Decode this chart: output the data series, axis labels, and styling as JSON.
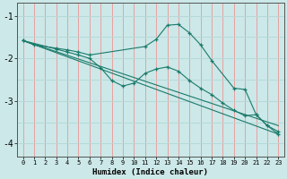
{
  "xlabel": "Humidex (Indice chaleur)",
  "xlim": [
    -0.5,
    23.5
  ],
  "ylim": [
    -4.3,
    -0.7
  ],
  "yticks": [
    -4,
    -3,
    -2,
    -1
  ],
  "xticks": [
    0,
    1,
    2,
    3,
    4,
    5,
    6,
    7,
    8,
    9,
    10,
    11,
    12,
    13,
    14,
    15,
    16,
    17,
    18,
    19,
    20,
    21,
    22,
    23
  ],
  "bg_color": "#cce8e8",
  "vgrid_color": "#e8a0a0",
  "hgrid_color": "#b8d8d8",
  "line_color": "#1a7a6a",
  "line1_x": [
    0,
    1,
    3,
    4,
    5,
    6,
    11,
    12,
    13,
    14,
    15,
    16,
    17,
    19,
    20,
    21,
    22,
    23
  ],
  "line1_y": [
    -1.58,
    -1.68,
    -1.76,
    -1.8,
    -1.85,
    -1.92,
    -1.72,
    -1.55,
    -1.22,
    -1.2,
    -1.4,
    -1.68,
    -2.05,
    -2.7,
    -2.73,
    -3.32,
    -3.58,
    -3.72
  ],
  "line2_x": [
    0,
    3,
    4,
    5,
    6,
    7,
    8,
    9,
    10,
    11,
    12,
    13,
    14,
    15,
    16,
    17,
    18,
    19,
    20,
    21,
    22,
    23
  ],
  "line2_y": [
    -1.58,
    -1.78,
    -1.85,
    -1.92,
    -2.0,
    -2.22,
    -2.52,
    -2.65,
    -2.58,
    -2.35,
    -2.25,
    -2.2,
    -2.3,
    -2.52,
    -2.7,
    -2.85,
    -3.05,
    -3.22,
    -3.35,
    -3.32,
    -3.58,
    -3.78
  ],
  "line3_x": [
    0,
    23
  ],
  "line3_y": [
    -1.58,
    -3.58
  ],
  "line4_x": [
    0,
    23
  ],
  "line4_y": [
    -1.58,
    -3.78
  ]
}
